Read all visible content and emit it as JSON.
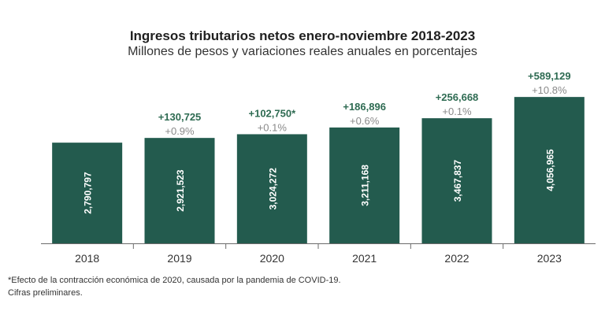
{
  "chart_data": {
    "type": "bar",
    "title": "Ingresos tributarios netos enero-noviembre 2018-2023",
    "subtitle": "Millones de pesos y variaciones reales anuales en porcentajes",
    "categories": [
      "2018",
      "2019",
      "2020",
      "2021",
      "2022",
      "2023"
    ],
    "values": [
      2790797,
      2921523,
      3024272,
      3211168,
      3467837,
      4056965
    ],
    "value_labels": [
      "2,790,797",
      "2,921,523",
      "3,024,272",
      "3,211,168",
      "3,467,837",
      "4,056,965"
    ],
    "annotations_change": [
      "",
      "+130,725",
      "+102,750*",
      "+186,896",
      "+256,668",
      "+589,129"
    ],
    "annotations_pct": [
      "",
      "+0.9%",
      "+0.1%",
      "+0.6%",
      "+0.1%",
      "+10.8%"
    ],
    "ylim": [
      0,
      4300000
    ],
    "grid": false,
    "bar_color": "#235b4e",
    "change_color": "#2e6b52",
    "pct_color": "#8a8a8a"
  },
  "footnotes": {
    "note1": "*Efecto de la contracción económica de 2020, causada por la pandemia de COVID-19.",
    "note2": "Cifras preliminares."
  }
}
